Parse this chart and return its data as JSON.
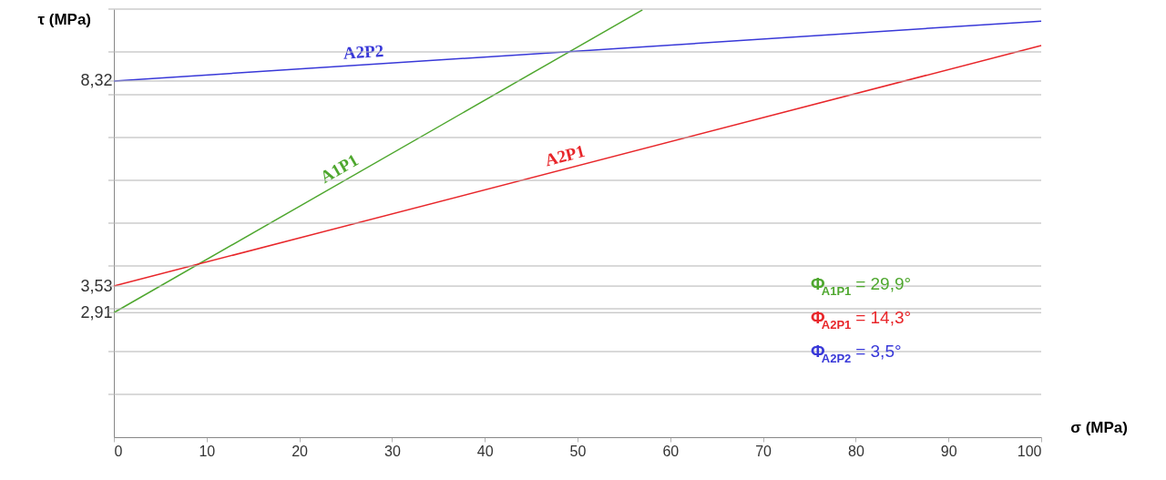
{
  "chart_data": {
    "type": "line",
    "xlabel": "σ (MPa)",
    "ylabel": "τ (MPa)",
    "xlim": [
      0,
      100
    ],
    "xticks": [
      0,
      10,
      20,
      30,
      40,
      50,
      60,
      70,
      80,
      90,
      100
    ],
    "ylim": [
      0,
      10
    ],
    "yticks": [
      {
        "value": 1,
        "label": null
      },
      {
        "value": 2,
        "label": null
      },
      {
        "value": 2.91,
        "label": "2,91"
      },
      {
        "value": 3,
        "label": null
      },
      {
        "value": 3.53,
        "label": "3,53"
      },
      {
        "value": 4,
        "label": null
      },
      {
        "value": 5,
        "label": null
      },
      {
        "value": 6,
        "label": null
      },
      {
        "value": 7,
        "label": null
      },
      {
        "value": 8,
        "label": null
      },
      {
        "value": 8.32,
        "label": "8,32"
      },
      {
        "value": 9,
        "label": null
      },
      {
        "value": 10,
        "label": null
      }
    ],
    "grid": "y",
    "marker": "none",
    "line_style": "solid",
    "series": [
      {
        "name": "A1P1",
        "color": "#4ea72e",
        "x": [
          0,
          57
        ],
        "values": [
          2.91,
          9.98
        ]
      },
      {
        "name": "A2P1",
        "color": "#e8262a",
        "x": [
          0,
          100
        ],
        "values": [
          3.53,
          9.15
        ]
      },
      {
        "name": "A2P2",
        "color": "#3838d8",
        "x": [
          0,
          100
        ],
        "values": [
          8.32,
          9.72
        ]
      }
    ],
    "annotations": [
      "Φ$_{A1P1}$ = 29,9°",
      "Φ$_{A2P1}$ = 14,3°",
      "Φ$_{A2P2}$ = 3,5°"
    ]
  }
}
